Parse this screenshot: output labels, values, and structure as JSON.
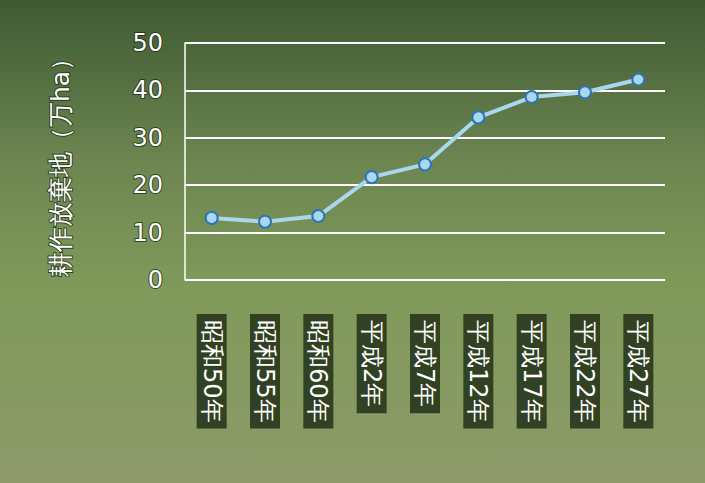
{
  "chart_data": {
    "type": "line",
    "ylabel": "耕作放棄地（万ha）",
    "categories": [
      "昭和50年",
      "昭和55年",
      "昭和60年",
      "平成2年",
      "平成7年",
      "平成12年",
      "平成17年",
      "平成22年",
      "平成27年"
    ],
    "values": [
      13.1,
      12.3,
      13.5,
      21.7,
      24.4,
      34.3,
      38.6,
      39.6,
      42.3
    ],
    "color": "#a9d7f0",
    "marker": "circle",
    "ylim": [
      0,
      50
    ],
    "yticks": [
      0,
      10,
      20,
      30,
      40,
      50
    ],
    "grid": true
  }
}
